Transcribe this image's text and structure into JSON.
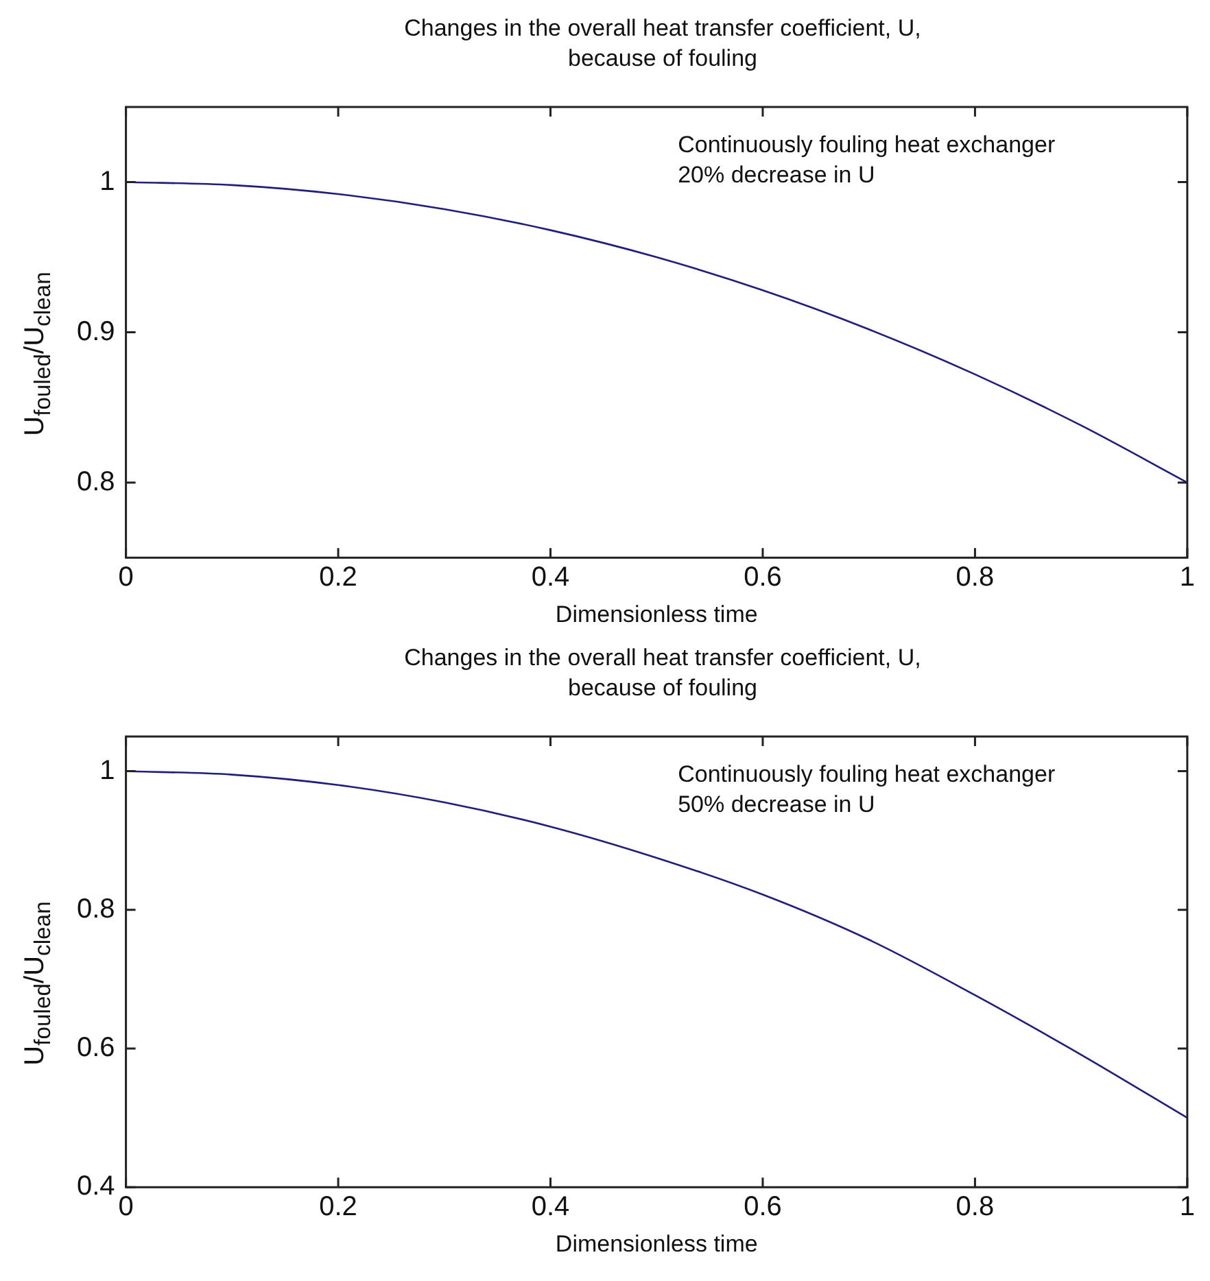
{
  "chart_data": [
    {
      "type": "line",
      "title": "Changes in the overall heat transfer coefficient, U, because of fouling",
      "xlabel": "Dimensionless time",
      "ylabel": "U$_{fouled}$/U$_{clean}$",
      "annotations": [
        "Continuously fouling heat exchanger",
        "20% decrease in U"
      ],
      "x": [
        0,
        0.1,
        0.2,
        0.3,
        0.4,
        0.5,
        0.6,
        0.7,
        0.8,
        0.9,
        1
      ],
      "marker": "none",
      "series": [
        {
          "color": "#1c1c8e",
          "values": [
            1,
            0.998,
            0.992,
            0.982,
            0.968,
            0.95,
            0.928,
            0.902,
            0.872,
            0.838,
            0.8
          ]
        }
      ],
      "xlim": [
        0,
        1
      ],
      "xticks": [
        0,
        0.2,
        0.4,
        0.6,
        0.8,
        1
      ],
      "ylim": [
        0.75,
        1.05
      ],
      "yticks": [
        0.8,
        0.9,
        1
      ]
    },
    {
      "type": "line",
      "title": "Changes in the overall heat transfer coefficient, U, because of fouling",
      "xlabel": "Dimensionless time",
      "ylabel": "U$_{fouled}$/U$_{clean}$",
      "annotations": [
        "Continuously fouling heat exchanger",
        "50% decrease in U"
      ],
      "x": [
        0,
        0.1,
        0.2,
        0.3,
        0.4,
        0.5,
        0.6,
        0.7,
        0.8,
        0.9,
        1
      ],
      "marker": "none",
      "series": [
        {
          "color": "#1c1c8e",
          "values": [
            1,
            0.995,
            0.98,
            0.955,
            0.92,
            0.875,
            0.822,
            0.757,
            0.677,
            0.591,
            0.5
          ]
        }
      ],
      "xlim": [
        0,
        1
      ],
      "xticks": [
        0,
        0.2,
        0.4,
        0.6,
        0.8,
        1
      ],
      "ylim": [
        0.4,
        1.05
      ],
      "yticks": [
        0.4,
        0.6,
        0.8,
        1
      ]
    }
  ]
}
